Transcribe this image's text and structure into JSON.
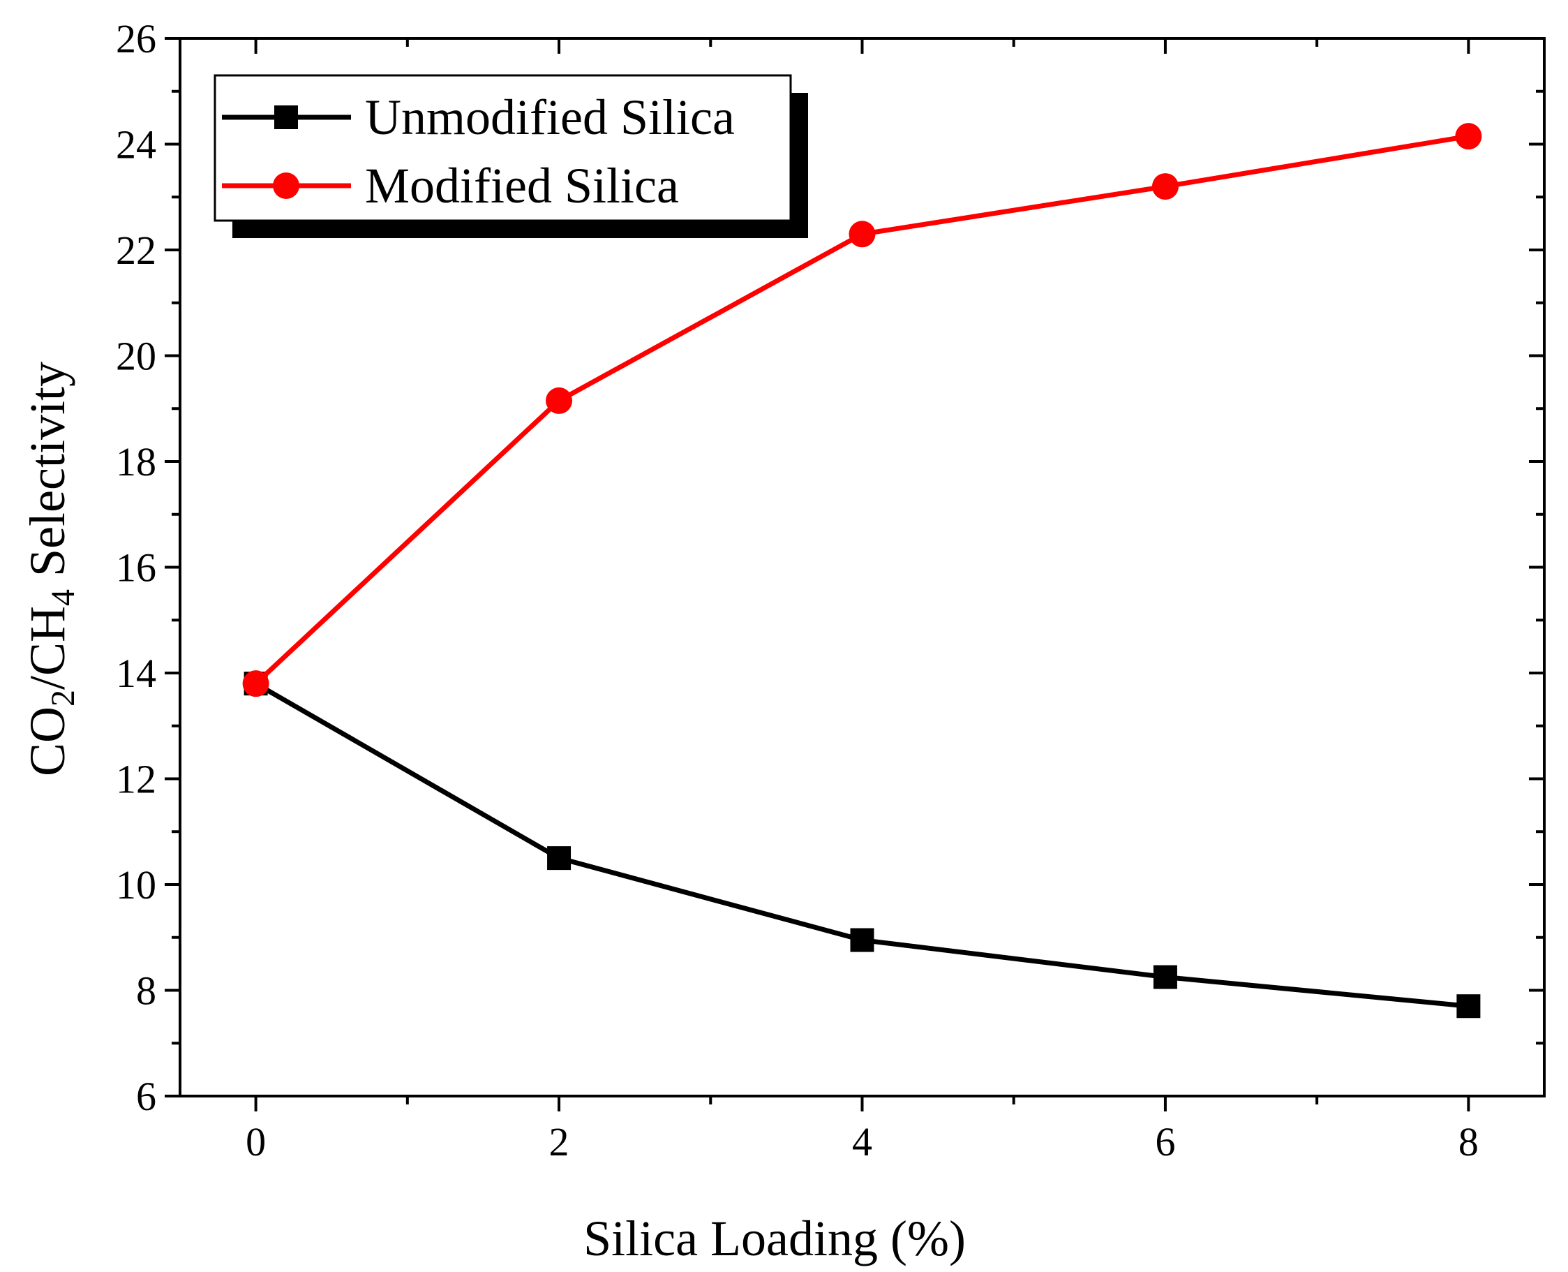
{
  "chart_data": {
    "type": "line",
    "title": "",
    "xlabel": "Silica Loading (%)",
    "ylabel": {
      "part1": "CO",
      "sub1": "2",
      "part2": "/CH",
      "sub2": "4",
      "part3": " Selectivity"
    },
    "x": [
      0,
      2,
      4,
      6,
      8
    ],
    "xlim": [
      -0.5,
      8.5
    ],
    "ylim": [
      6,
      26
    ],
    "x_ticks": [
      0,
      2,
      4,
      6,
      8
    ],
    "x_tick_labels": [
      "0",
      "2",
      "4",
      "6",
      "8"
    ],
    "x_minor_ticks": [
      1,
      3,
      5,
      7
    ],
    "y_ticks": [
      6,
      8,
      10,
      12,
      14,
      16,
      18,
      20,
      22,
      24,
      26
    ],
    "y_tick_labels": [
      "6",
      "8",
      "10",
      "12",
      "14",
      "16",
      "18",
      "20",
      "22",
      "24",
      "26"
    ],
    "y_minor_ticks": [
      7,
      9,
      11,
      13,
      15,
      17,
      19,
      21,
      23,
      25
    ],
    "grid": false,
    "legend_position": "top-left",
    "series": [
      {
        "name": "Unmodified Silica",
        "values": [
          13.8,
          10.5,
          8.95,
          8.25,
          7.7
        ],
        "color": "#000000",
        "marker": "square"
      },
      {
        "name": "Modified Silica",
        "values": [
          13.8,
          19.15,
          22.3,
          23.2,
          24.15
        ],
        "color": "#ff0000",
        "marker": "circle"
      }
    ]
  }
}
